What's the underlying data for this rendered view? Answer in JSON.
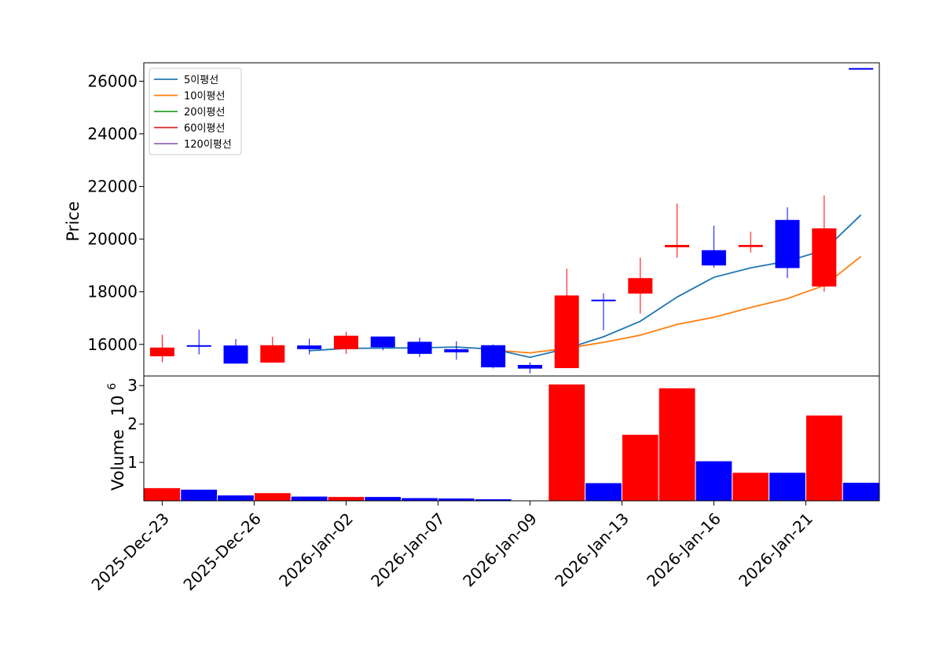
{
  "chart_data": {
    "type": "candlestick",
    "price_axis": {
      "label": "Price",
      "ylim": [
        14800,
        26700
      ],
      "ticks": [
        16000,
        18000,
        20000,
        22000,
        24000,
        26000
      ],
      "tick_labels": [
        "16000",
        "18000",
        "20000",
        "22000",
        "24000",
        "26000"
      ]
    },
    "volume_axis": {
      "label": "Volume",
      "multiplier_label": "10",
      "multiplier_exponent": "6",
      "ylim": [
        0,
        3.25
      ],
      "ticks": [
        1,
        2,
        3
      ],
      "tick_labels": [
        "1",
        "2",
        "3"
      ]
    },
    "x_tick_labels": [
      {
        "index": 0,
        "label": "2025-Dec-23"
      },
      {
        "index": 2.5,
        "label": "2025-Dec-26"
      },
      {
        "index": 5,
        "label": "2026-Jan-02"
      },
      {
        "index": 7.5,
        "label": "2026-Jan-07"
      },
      {
        "index": 10,
        "label": "2026-Jan-09"
      },
      {
        "index": 12.5,
        "label": "2026-Jan-13"
      },
      {
        "index": 15,
        "label": "2026-Jan-16"
      },
      {
        "index": 17.5,
        "label": "2026-Jan-21"
      }
    ],
    "legend": [
      {
        "label": "5이평선",
        "color": "#1f77b4"
      },
      {
        "label": "10이평선",
        "color": "#ff7f0e"
      },
      {
        "label": "20이평선",
        "color": "#2ca02c"
      },
      {
        "label": "60이평선",
        "color": "#d62728"
      },
      {
        "label": "120이평선",
        "color": "#9467bd"
      }
    ],
    "colors": {
      "up": "#ff0000",
      "down": "#0000ff"
    },
    "candles": [
      {
        "open": 15550,
        "close": 15880,
        "high": 16370,
        "low": 15320,
        "dir": "up"
      },
      {
        "open": 15970,
        "close": 15930,
        "high": 16560,
        "low": 15620,
        "dir": "down"
      },
      {
        "open": 15960,
        "close": 15270,
        "high": 16200,
        "low": 15270,
        "dir": "down"
      },
      {
        "open": 15310,
        "close": 15970,
        "high": 16290,
        "low": 15310,
        "dir": "up"
      },
      {
        "open": 15960,
        "close": 15820,
        "high": 16220,
        "low": 15620,
        "dir": "down"
      },
      {
        "open": 15820,
        "close": 16330,
        "high": 16480,
        "low": 15640,
        "dir": "up"
      },
      {
        "open": 16300,
        "close": 15890,
        "high": 16300,
        "low": 15780,
        "dir": "down"
      },
      {
        "open": 16100,
        "close": 15640,
        "high": 16260,
        "low": 15520,
        "dir": "down"
      },
      {
        "open": 15820,
        "close": 15700,
        "high": 16120,
        "low": 15420,
        "dir": "down"
      },
      {
        "open": 15970,
        "close": 15130,
        "high": 16000,
        "low": 15090,
        "dir": "down"
      },
      {
        "open": 15220,
        "close": 15080,
        "high": 15320,
        "low": 14900,
        "dir": "down"
      },
      {
        "open": 15100,
        "close": 17860,
        "high": 18880,
        "low": 15100,
        "dir": "up"
      },
      {
        "open": 17700,
        "close": 17660,
        "high": 17940,
        "low": 16540,
        "dir": "down"
      },
      {
        "open": 17930,
        "close": 18520,
        "high": 19300,
        "low": 17170,
        "dir": "up"
      },
      {
        "open": 19690,
        "close": 19780,
        "high": 21350,
        "low": 19290,
        "dir": "up"
      },
      {
        "open": 19580,
        "close": 19000,
        "high": 20510,
        "low": 18910,
        "dir": "down"
      },
      {
        "open": 19700,
        "close": 19780,
        "high": 20280,
        "low": 19490,
        "dir": "up"
      },
      {
        "open": 20730,
        "close": 18900,
        "high": 21210,
        "low": 18520,
        "dir": "down"
      },
      {
        "open": 18200,
        "close": 20410,
        "high": 21660,
        "low": 18000,
        "dir": "up"
      },
      {
        "open": 26500,
        "close": 26500,
        "high": 26500,
        "low": 26500,
        "dir": "down"
      }
    ],
    "volume": [
      0.34,
      0.3,
      0.15,
      0.21,
      0.12,
      0.11,
      0.11,
      0.08,
      0.07,
      0.05,
      0.02,
      3.04,
      0.47,
      1.73,
      2.94,
      1.04,
      0.74,
      0.74,
      2.23,
      0.48
    ],
    "ma5": [
      null,
      null,
      null,
      null,
      15760,
      15850,
      15860,
      15870,
      15900,
      15820,
      15510,
      15840,
      16290,
      16880,
      17800,
      18550,
      18910,
      19160,
      19580,
      20920
    ],
    "ma10": [
      null,
      null,
      null,
      null,
      null,
      null,
      null,
      null,
      null,
      15780,
      15680,
      15850,
      16080,
      16350,
      16760,
      17030,
      17400,
      17740,
      18240,
      19340
    ]
  }
}
